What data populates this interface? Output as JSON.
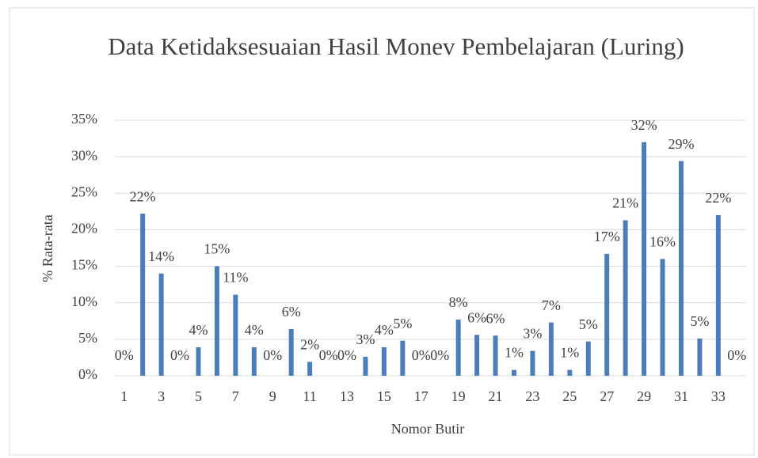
{
  "chart_data": {
    "type": "bar",
    "title": "Data Ketidaksesuaian Hasil Monev Pembelajaran (Luring)",
    "x_label": "Nomor Butir",
    "y_label": "% Rata-rata",
    "categories": [
      "1",
      null,
      "3",
      null,
      "5",
      null,
      "7",
      null,
      "9",
      null,
      "11",
      null,
      "13",
      null,
      "15",
      null,
      "17",
      null,
      "19",
      null,
      "21",
      null,
      "23",
      null,
      "25",
      null,
      "27",
      null,
      "29",
      null,
      "31",
      null,
      "33",
      null
    ],
    "values": [
      0,
      22.2,
      14,
      0,
      3.9,
      15,
      11.1,
      3.9,
      0,
      6.4,
      1.9,
      0,
      0,
      2.6,
      3.9,
      4.8,
      0,
      0,
      7.7,
      5.6,
      5.5,
      0.8,
      3.4,
      7.3,
      0.8,
      4.7,
      16.7,
      21.3,
      32,
      16,
      29.4,
      5.1,
      22,
      0
    ],
    "value_labels": [
      "0%",
      "22%",
      "14%",
      "0%",
      "4%",
      "15%",
      "11%",
      "4%",
      "0%",
      "6%",
      "2%",
      "0%",
      "0%",
      "3%",
      "4%",
      "5%",
      "0%",
      "0%",
      "8%",
      "6%",
      "6%",
      "1%",
      "3%",
      "7%",
      "1%",
      "5%",
      "17%",
      "21%",
      "32%",
      "16%",
      "29%",
      "5%",
      "22%",
      "0%"
    ],
    "color": "#4a7ebb",
    "ylim": [
      0,
      35
    ],
    "yticks": [
      {
        "value": 0,
        "label": "0%"
      },
      {
        "value": 5,
        "label": "5%"
      },
      {
        "value": 10,
        "label": "10%"
      },
      {
        "value": 15,
        "label": "15%"
      },
      {
        "value": 20,
        "label": "20%"
      },
      {
        "value": 25,
        "label": "25%"
      },
      {
        "value": 30,
        "label": "30%"
      },
      {
        "value": 35,
        "label": "35%"
      }
    ],
    "grid": true
  }
}
